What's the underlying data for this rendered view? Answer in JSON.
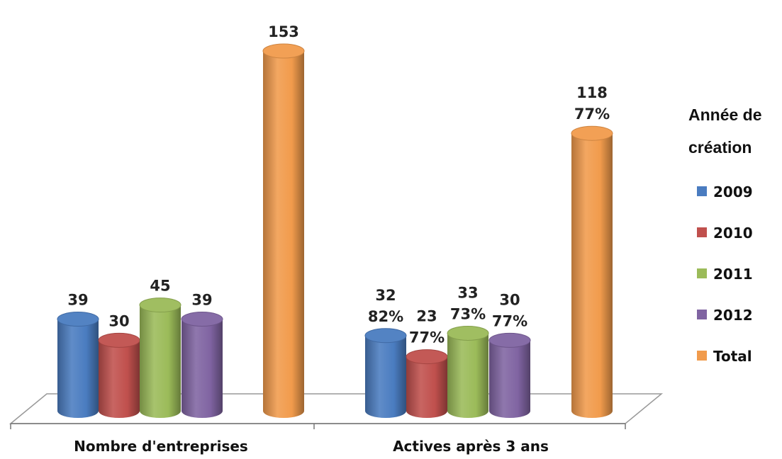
{
  "chart_data": {
    "type": "bar",
    "style": "3d-cylinder",
    "categories": [
      "Nombre d'entreprises",
      "Actives après 3 ans"
    ],
    "series": [
      {
        "name": "2009",
        "color": "#4a7cc0",
        "values": [
          39,
          32
        ],
        "labels": [
          [
            "39"
          ],
          [
            "32",
            "82%"
          ]
        ]
      },
      {
        "name": "2010",
        "color": "#c0504d",
        "values": [
          30,
          23
        ],
        "labels": [
          [
            "30"
          ],
          [
            "23",
            "77%"
          ]
        ]
      },
      {
        "name": "2011",
        "color": "#9bbb59",
        "values": [
          45,
          33
        ],
        "labels": [
          [
            "45"
          ],
          [
            "33",
            "73%"
          ]
        ]
      },
      {
        "name": "2012",
        "color": "#8064a2",
        "values": [
          39,
          30
        ],
        "labels": [
          [
            "39"
          ],
          [
            "30",
            "77%"
          ]
        ]
      },
      {
        "name": "Total",
        "color": "#f19b4c",
        "values": [
          153,
          118
        ],
        "labels": [
          [
            "153"
          ],
          [
            "118",
            "77%"
          ]
        ]
      }
    ],
    "legend": {
      "title": [
        "Année de",
        "création"
      ],
      "position": "right"
    },
    "ylim": [
      0,
      160
    ],
    "grid": false
  }
}
